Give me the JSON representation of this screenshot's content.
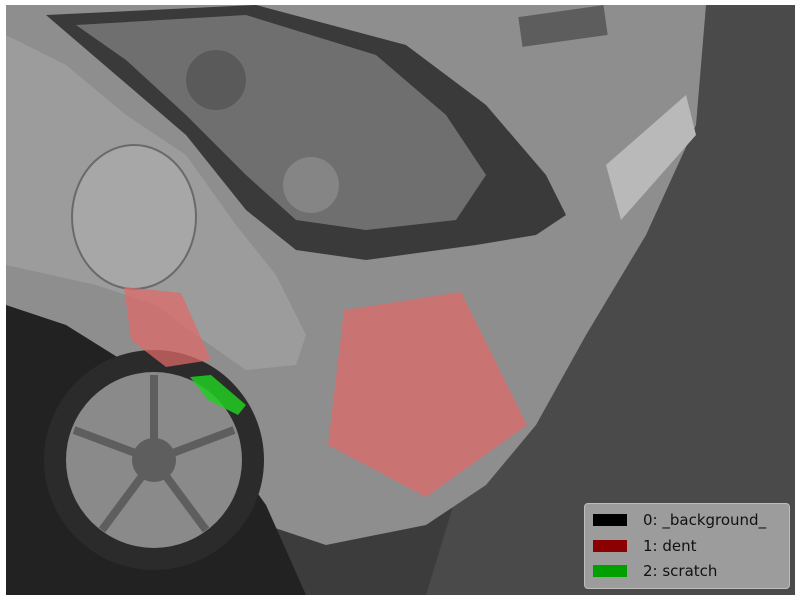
{
  "figure": {
    "description_free": true,
    "mask_colors": {
      "dent": "#e06a6a",
      "scratch": "#22cc22"
    },
    "legend": {
      "entries": [
        {
          "label": "0: _background_",
          "color": "#000000"
        },
        {
          "label": "1: dent",
          "color": "#8b0000"
        },
        {
          "label": "2: scratch",
          "color": "#00a000"
        }
      ]
    }
  }
}
